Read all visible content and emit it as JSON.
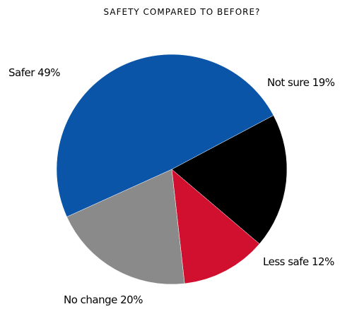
{
  "chart_data": {
    "type": "pie",
    "title": "SAFETY COMPARED TO BEFORE?",
    "slices": [
      {
        "label": "Not sure 19%",
        "category": "Not sure",
        "value": 19,
        "color": "#000000"
      },
      {
        "label": "Less safe 12%",
        "category": "Less safe",
        "value": 12,
        "color": "#d0102e"
      },
      {
        "label": "No change 20%",
        "category": "No change",
        "value": 20,
        "color": "#8a8a8a"
      },
      {
        "label": "Safer 49%",
        "category": "Safer",
        "value": 49,
        "color": "#0b55a8"
      }
    ],
    "legend": "none",
    "grid": false
  }
}
